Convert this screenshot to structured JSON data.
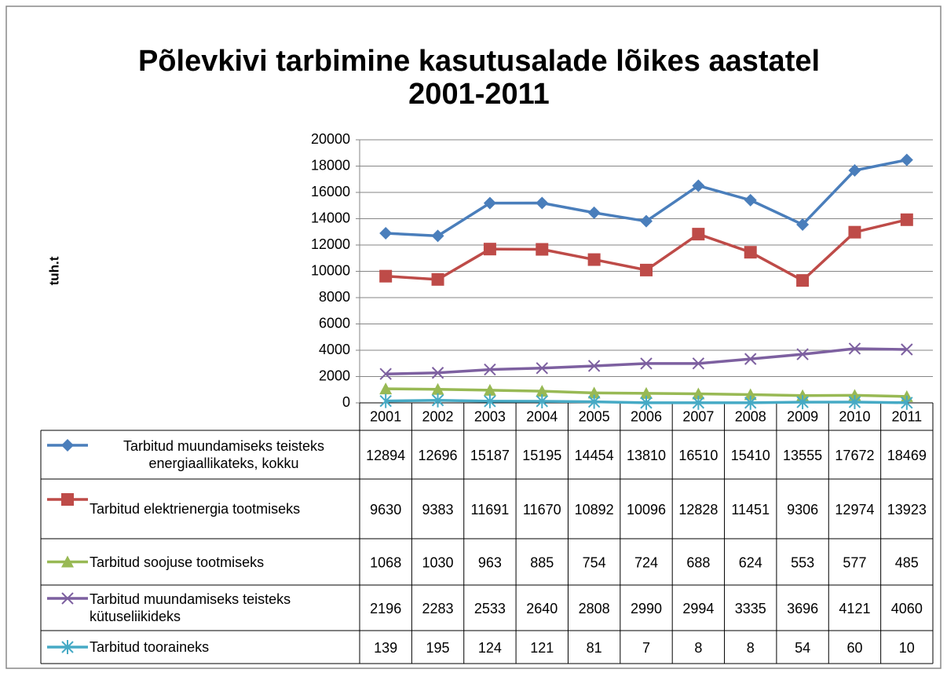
{
  "chart_data": {
    "type": "line",
    "title": "Põlevkivi tarbimine kasutusalade lõikes aastatel 2001-2011",
    "y_label": "tuh.t",
    "categories": [
      "2001",
      "2002",
      "2003",
      "2004",
      "2005",
      "2006",
      "2007",
      "2008",
      "2009",
      "2010",
      "2011"
    ],
    "ylim": [
      0,
      20000
    ],
    "yticks": [
      0,
      2000,
      4000,
      6000,
      8000,
      10000,
      12000,
      14000,
      16000,
      18000,
      20000
    ],
    "grid": true,
    "data_table": true,
    "series": [
      {
        "name": "Tarbitud muundamiseks teisteks energiaallikateks, kokku",
        "color": "#4a7ebb",
        "marker": "diamond",
        "values": [
          12894,
          12696,
          15187,
          15195,
          14454,
          13810,
          16510,
          15410,
          13555,
          17672,
          18469
        ]
      },
      {
        "name": "Tarbitud elektrienergia tootmiseks",
        "color": "#be4b48",
        "marker": "square",
        "values": [
          9630,
          9383,
          11691,
          11670,
          10892,
          10096,
          12828,
          11451,
          9306,
          12974,
          13923
        ]
      },
      {
        "name": "Tarbitud soojuse tootmiseks",
        "color": "#98b954",
        "marker": "triangle",
        "values": [
          1068,
          1030,
          963,
          885,
          754,
          724,
          688,
          624,
          553,
          577,
          485
        ]
      },
      {
        "name": "Tarbitud muundamiseks teisteks kütuseliikideks",
        "color": "#7d60a0",
        "marker": "x",
        "values": [
          2196,
          2283,
          2533,
          2640,
          2808,
          2990,
          2994,
          3335,
          3696,
          4121,
          4060
        ]
      },
      {
        "name": "Tarbitud tooraineks",
        "color": "#46aac5",
        "marker": "asterisk",
        "values": [
          139,
          195,
          124,
          121,
          81,
          7,
          8,
          8,
          54,
          60,
          10
        ]
      }
    ]
  }
}
